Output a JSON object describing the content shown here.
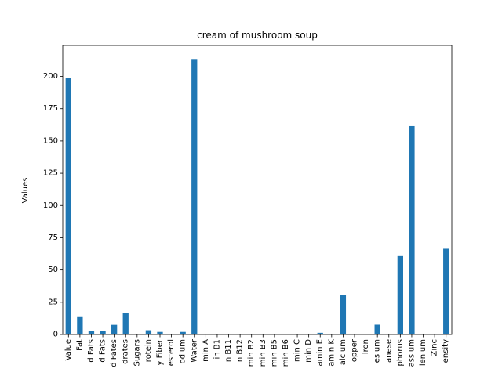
{
  "chart_data": {
    "type": "bar",
    "title": "cream of mushroom soup",
    "xlabel": "",
    "ylabel": "Values",
    "ylim": [
      0,
      224
    ],
    "yticks": [
      0,
      25,
      50,
      75,
      100,
      125,
      150,
      175,
      200
    ],
    "grid": false,
    "bar_color": "#1f77b4",
    "categories": [
      "Value",
      "Fat",
      "d Fats",
      "d Fats",
      "d Fates",
      "drates",
      "Sugars",
      "rotein",
      "y Fiber",
      "esterol",
      "odium",
      "Water",
      "min A",
      "in B1",
      "in B11",
      "in B12",
      "min B2",
      "min B3",
      "min B5",
      "min B6",
      "min C",
      "min D",
      "amin E",
      "amin K",
      "alcium",
      "opper",
      "Iron",
      "esium",
      "anese",
      "phorus",
      "assium",
      "lenium",
      "Zinc",
      "ensity"
    ],
    "values": [
      199,
      13.5,
      2.5,
      3.0,
      7.5,
      17.0,
      0.5,
      3.3,
      2.0,
      0.3,
      2.0,
      213.5,
      0,
      0,
      0,
      0,
      0,
      0.4,
      0,
      0,
      0,
      0,
      1.3,
      0,
      30.5,
      0,
      0.6,
      7.6,
      0,
      60.8,
      161.5,
      0,
      0,
      66.5
    ]
  }
}
